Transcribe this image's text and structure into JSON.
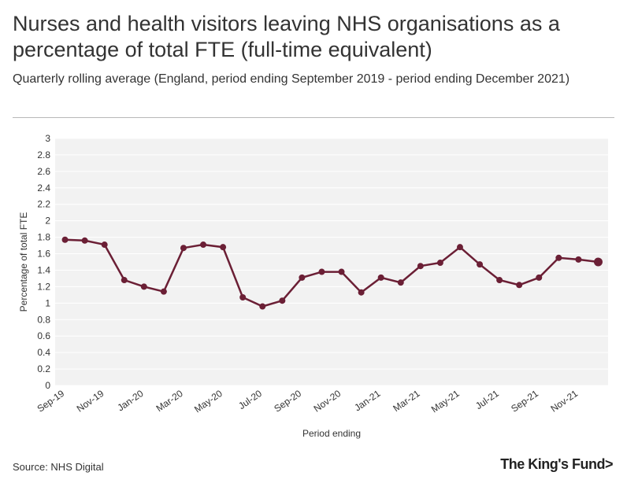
{
  "header": {
    "title": "Nurses and health visitors leaving NHS organisations as a percentage of total FTE (full-time equivalent)",
    "subtitle": "Quarterly rolling average (England, period ending September 2019 - period ending December 2021)"
  },
  "footer": {
    "source": "Source: NHS Digital",
    "logo_text": "The King's Fund>"
  },
  "colors": {
    "series": "#6b1f35",
    "plot_bg": "#f2f2f2",
    "grid": "#ffffff"
  },
  "chart_data": {
    "type": "line",
    "title": "Nurses and health visitors leaving NHS organisations as a percentage of total FTE (full-time equivalent)",
    "xlabel": "Period ending",
    "ylabel": "Percentage of total FTE",
    "ylim": [
      0,
      3
    ],
    "yticks": [
      0,
      0.2,
      0.4,
      0.6,
      0.8,
      1,
      1.2,
      1.4,
      1.6,
      1.8,
      2,
      2.2,
      2.4,
      2.6,
      2.8,
      3
    ],
    "grid": true,
    "x": [
      "Sep-19",
      "Oct-19",
      "Nov-19",
      "Dec-19",
      "Jan-20",
      "Feb-20",
      "Mar-20",
      "Apr-20",
      "May-20",
      "Jun-20",
      "Jul-20",
      "Aug-20",
      "Sep-20",
      "Oct-20",
      "Nov-20",
      "Dec-20",
      "Jan-21",
      "Feb-21",
      "Mar-21",
      "Apr-21",
      "May-21",
      "Jun-21",
      "Jul-21",
      "Aug-21",
      "Sep-21",
      "Oct-21",
      "Nov-21",
      "Dec-21"
    ],
    "xtick_labels": [
      "Sep-19",
      "Nov-19",
      "Jan-20",
      "Mar-20",
      "May-20",
      "Jul-20",
      "Sep-20",
      "Nov-20",
      "Jan-21",
      "Mar-21",
      "May-21",
      "Jul-21",
      "Sep-21",
      "Nov-21"
    ],
    "values": [
      1.77,
      1.76,
      1.71,
      1.28,
      1.2,
      1.14,
      1.67,
      1.71,
      1.68,
      1.07,
      0.96,
      1.03,
      1.31,
      1.38,
      1.38,
      1.13,
      1.31,
      1.25,
      1.45,
      1.49,
      1.68,
      1.47,
      1.28,
      1.22,
      1.31,
      1.55,
      1.53,
      1.5
    ]
  }
}
